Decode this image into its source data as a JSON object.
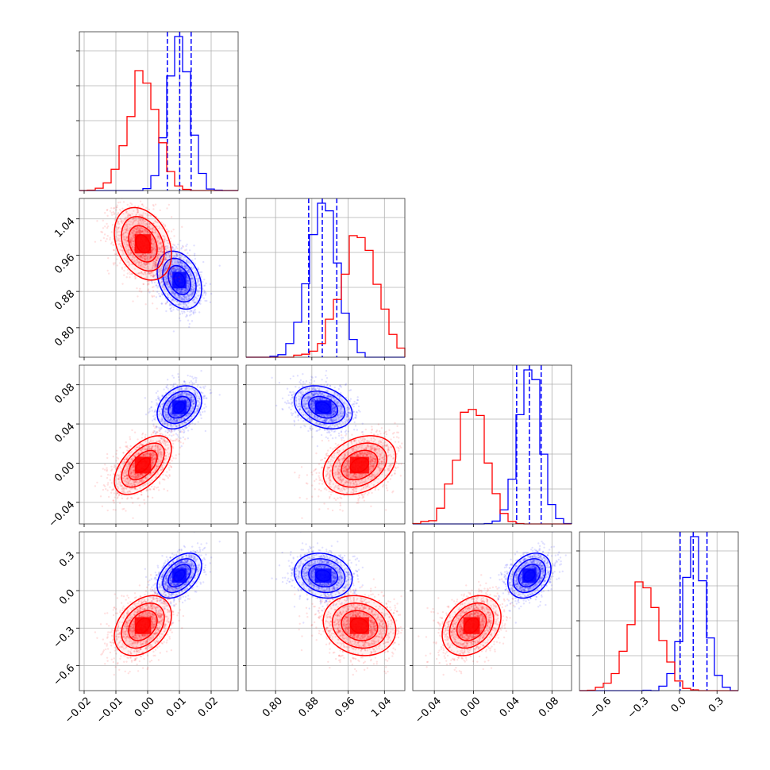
{
  "chart_data": {
    "type": "corner",
    "grid": true,
    "colors": {
      "blue": "#0000ff",
      "red": "#ff0000"
    },
    "parameters": [
      {
        "key": "p0",
        "ticks": [
          "−0.02",
          "−0.01",
          "0.00",
          "0.01",
          "0.02"
        ],
        "tick_values": [
          -0.02,
          -0.01,
          0.0,
          0.01,
          0.02
        ],
        "range": [
          -0.0215,
          0.0285
        ]
      },
      {
        "key": "p1",
        "ticks": [
          "0.80",
          "0.88",
          "0.96",
          "1.04"
        ],
        "tick_values": [
          0.8,
          0.88,
          0.96,
          1.04
        ],
        "range": [
          0.735,
          1.085
        ]
      },
      {
        "key": "p2",
        "ticks": [
          "−0.04",
          "0.00",
          "0.04",
          "0.08"
        ],
        "tick_values": [
          -0.04,
          0.0,
          0.04,
          0.08
        ],
        "range": [
          -0.062,
          0.1
        ]
      },
      {
        "key": "p3",
        "ticks": [
          "−0.6",
          "−0.3",
          "0.0",
          "0.3"
        ],
        "tick_values": [
          -0.6,
          -0.3,
          0.0,
          0.3
        ],
        "range": [
          -0.8,
          0.47
        ]
      }
    ],
    "series": [
      {
        "color": "blue",
        "mean": [
          0.01,
          0.905,
          0.057,
          0.12
        ],
        "sd": [
          0.0035,
          0.032,
          0.011,
          0.09
        ],
        "corr": {
          "0-1": -0.3,
          "0-2": 0.3,
          "0-3": 0.45,
          "1-2": -0.3,
          "1-3": -0.15,
          "2-3": 0.3
        },
        "quantiles": [
          [
            0.0062,
            0.0101,
            0.0137
          ],
          [
            0.873,
            0.903,
            0.935
          ],
          [
            0.044,
            0.057,
            0.069
          ],
          [
            0.005,
            0.11,
            0.22
          ]
        ]
      },
      {
        "color": "red",
        "mean": [
          -0.0015,
          0.985,
          -0.002,
          -0.28
        ],
        "sd": [
          0.0045,
          0.04,
          0.015,
          0.12
        ],
        "corr": {
          "0-1": -0.3,
          "0-2": 0.55,
          "0-3": 0.35,
          "1-2": 0.3,
          "1-3": -0.15,
          "2-3": 0.3
        },
        "quantiles": []
      }
    ]
  }
}
